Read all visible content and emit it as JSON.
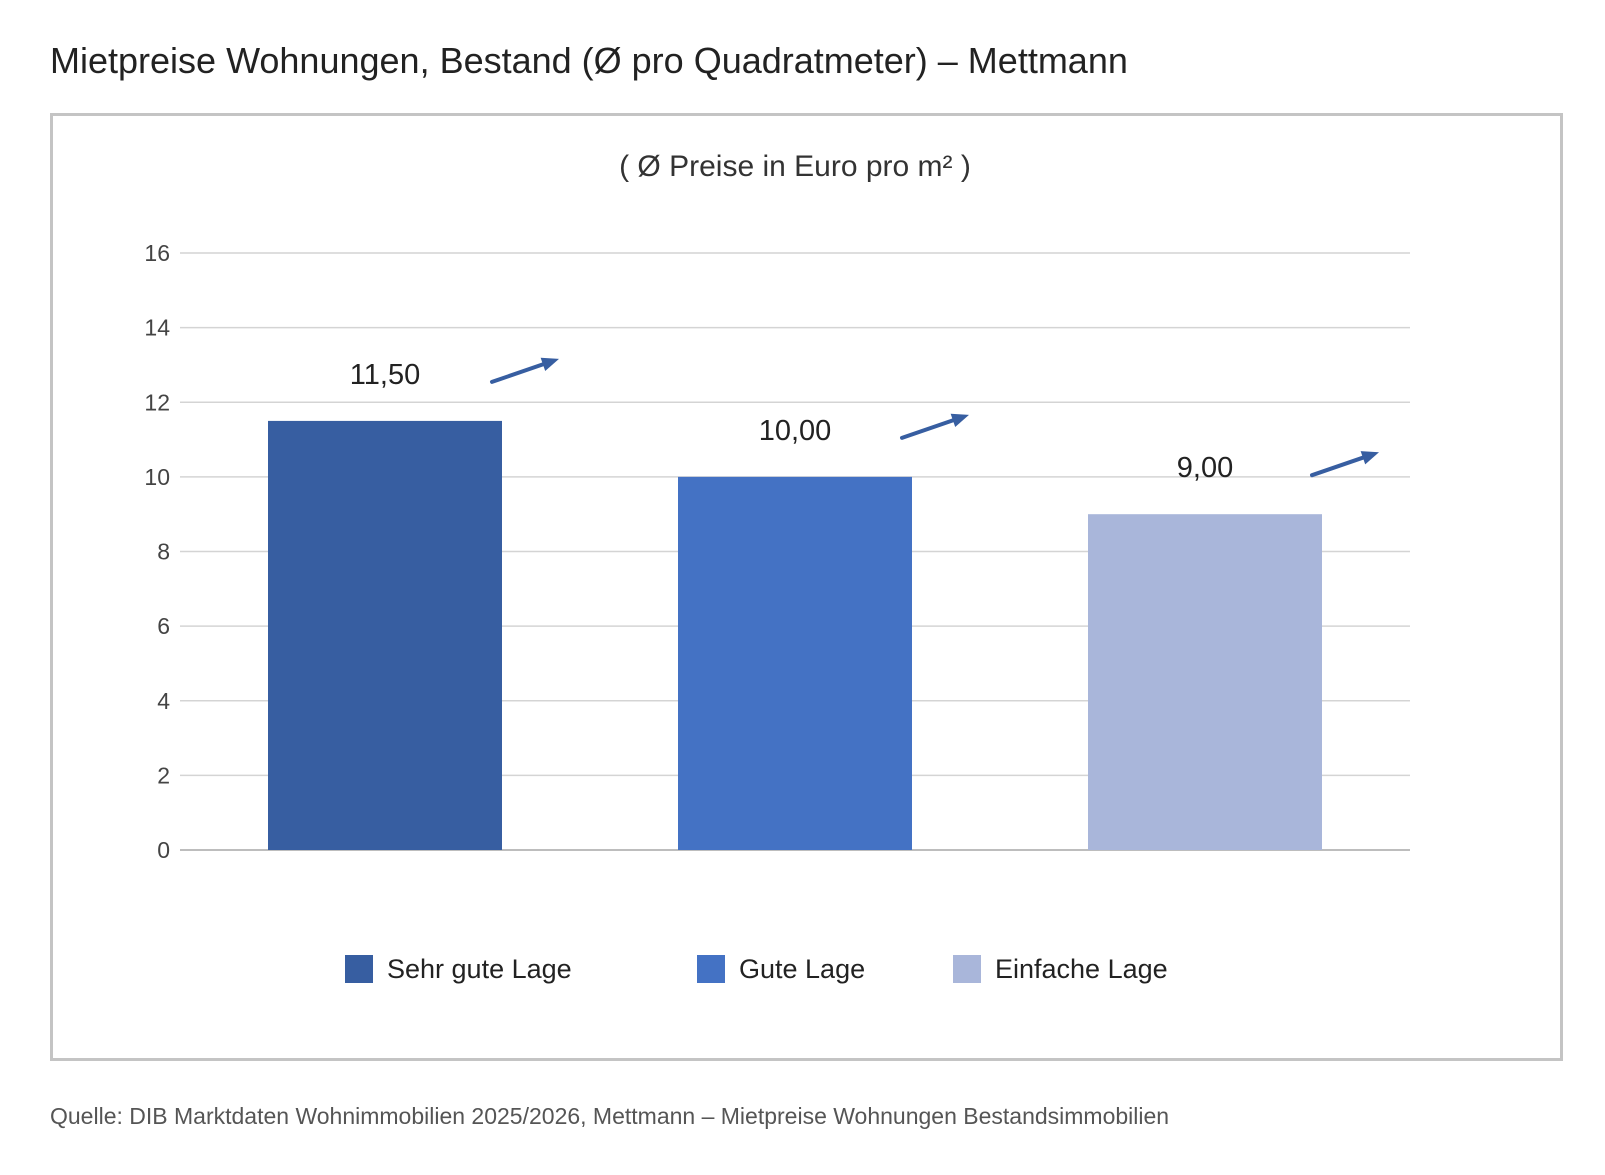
{
  "page": {
    "title": "Mietpreise Wohnungen, Bestand (Ø pro Quadratmeter) – Mettmann",
    "source": "Quelle: DIB Marktdaten Wohnimmobilien 2025/2026, Mettmann – Mietpreise Wohnungen Bestandsimmobilien"
  },
  "chart_data": {
    "type": "bar",
    "subtitle": "( Ø Preise in Euro pro m² )",
    "categories": [
      "Sehr gute Lage",
      "Gute Lage",
      "Einfache Lage"
    ],
    "values": [
      11.5,
      10.0,
      9.0
    ],
    "value_labels": [
      "11,50",
      "10,00",
      "9,00"
    ],
    "trend": [
      "up",
      "up",
      "up"
    ],
    "colors": [
      "#375ea1",
      "#4472c4",
      "#a9b6da"
    ],
    "trend_arrow_color": "#375ea1",
    "ylim": [
      0,
      16
    ],
    "yticks": [
      0,
      2,
      4,
      6,
      8,
      10,
      12,
      14,
      16
    ],
    "grid": true,
    "legend": {
      "position": "bottom",
      "items": [
        "Sehr gute Lage",
        "Gute Lage",
        "Einfache Lage"
      ]
    }
  }
}
